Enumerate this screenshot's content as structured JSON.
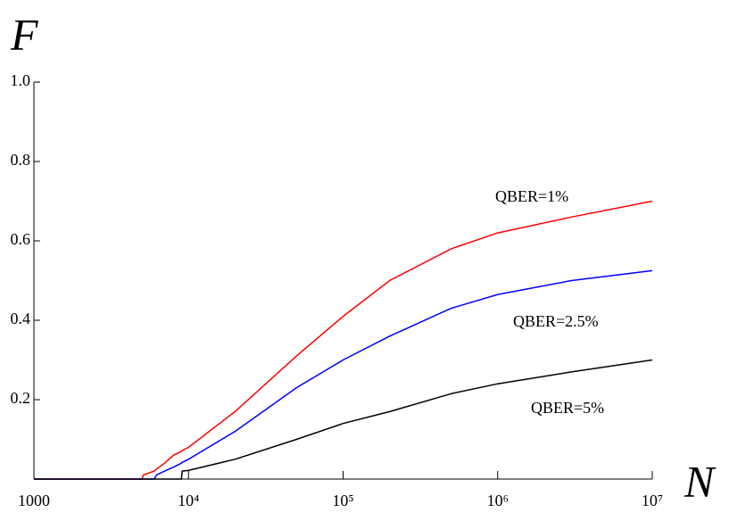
{
  "chart_data": {
    "type": "line",
    "x_label": "N",
    "y_label": "F",
    "xscale": "log",
    "xlim": [
      1000,
      10000000
    ],
    "xticks": [
      1000,
      {
        "value": 10000,
        "label": "10⁴"
      },
      {
        "value": 100000,
        "label": "10⁵"
      },
      {
        "value": 1000000,
        "label": "10⁶"
      },
      {
        "value": 10000000,
        "label": "10⁷"
      }
    ],
    "ylim": [
      0,
      1
    ],
    "yticks": [
      0.2,
      0.4,
      0.6,
      0.8,
      {
        "value": 1,
        "label": "1.0"
      }
    ],
    "x": [
      1000,
      5000,
      5100,
      6000,
      6200,
      7000,
      8000,
      9000,
      9100,
      10000,
      20000,
      50000,
      100000,
      200000,
      500000,
      1000000,
      3000000,
      10000000
    ],
    "series": [
      {
        "name": "QBER=1%",
        "color": "#ff0000",
        "values": [
          0,
          0,
          0.01,
          0.02,
          0.025,
          0.04,
          0.06,
          0.07,
          0.072,
          0.08,
          0.17,
          0.31,
          0.41,
          0.5,
          0.58,
          0.62,
          0.66,
          0.7
        ]
      },
      {
        "name": "QBER=2.5%",
        "color": "#0000ff",
        "values": [
          0,
          0,
          0,
          0,
          0.01,
          0.02,
          0.03,
          0.04,
          0.042,
          0.05,
          0.12,
          0.23,
          0.3,
          0.36,
          0.43,
          0.465,
          0.5,
          0.525
        ]
      },
      {
        "name": "QBER=5%",
        "color": "#000000",
        "values": [
          0,
          0,
          0,
          0,
          0,
          0,
          0,
          0,
          0.02,
          0.022,
          0.05,
          0.1,
          0.14,
          0.17,
          0.215,
          0.24,
          0.27,
          0.3
        ]
      }
    ]
  }
}
